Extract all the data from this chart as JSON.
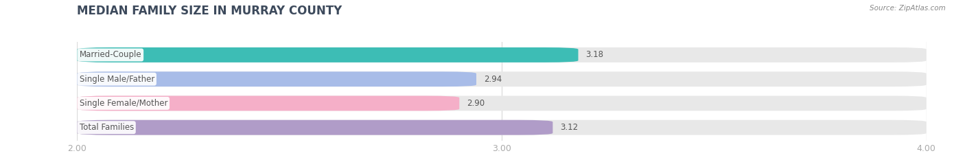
{
  "title": "MEDIAN FAMILY SIZE IN MURRAY COUNTY",
  "source": "Source: ZipAtlas.com",
  "categories": [
    "Married-Couple",
    "Single Male/Father",
    "Single Female/Mother",
    "Total Families"
  ],
  "values": [
    3.18,
    2.94,
    2.9,
    3.12
  ],
  "bar_colors": [
    "#3dbdb5",
    "#a8bce8",
    "#f5afc8",
    "#b09cc8"
  ],
  "xlim": [
    2.0,
    4.0
  ],
  "xticks": [
    2.0,
    3.0,
    4.0
  ],
  "xtick_labels": [
    "2.00",
    "3.00",
    "4.00"
  ],
  "background_color": "#ffffff",
  "bar_bg_color": "#e8e8e8",
  "title_fontsize": 12,
  "label_fontsize": 8.5,
  "value_fontsize": 8.5,
  "tick_fontsize": 9,
  "bar_height": 0.62,
  "bar_gap": 0.38,
  "title_color": "#3d4a5c",
  "label_color": "#555555",
  "value_color": "#555555",
  "tick_color": "#aaaaaa",
  "grid_color": "#dddddd",
  "source_color": "#888888"
}
